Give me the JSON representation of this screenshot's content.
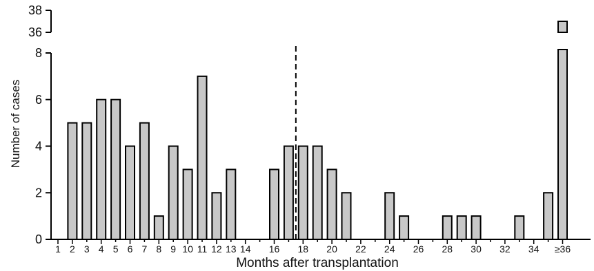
{
  "chart_data": {
    "type": "bar",
    "xlabel": "Months after transplantation",
    "ylabel": "Number of cases",
    "x_tick_labels": [
      "1",
      "2",
      "3",
      "4",
      "5",
      "6",
      "7",
      "8",
      "9",
      "10",
      "11",
      "12",
      "13",
      "14",
      "16",
      "18",
      "20",
      "22",
      "24",
      "26",
      "28",
      "30",
      "32",
      "34",
      "≥36"
    ],
    "y_tick_labels_lower": [
      "0",
      "2",
      "4",
      "6",
      "8"
    ],
    "y_tick_labels_upper": [
      "36",
      "38"
    ],
    "ylim_lower": [
      0,
      8
    ],
    "ylim_upper": [
      36,
      38
    ],
    "axis_break": true,
    "bars": [
      {
        "month": "2",
        "value": 5
      },
      {
        "month": "3",
        "value": 5
      },
      {
        "month": "4",
        "value": 6
      },
      {
        "month": "5",
        "value": 6
      },
      {
        "month": "6",
        "value": 4
      },
      {
        "month": "7",
        "value": 5
      },
      {
        "month": "8",
        "value": 1
      },
      {
        "month": "9",
        "value": 4
      },
      {
        "month": "10",
        "value": 3
      },
      {
        "month": "11",
        "value": 7
      },
      {
        "month": "12",
        "value": 2
      },
      {
        "month": "13",
        "value": 3
      },
      {
        "month": "16",
        "value": 3
      },
      {
        "month": "17",
        "value": 4
      },
      {
        "month": "18",
        "value": 4
      },
      {
        "month": "19",
        "value": 4
      },
      {
        "month": "20",
        "value": 3
      },
      {
        "month": "21",
        "value": 2
      },
      {
        "month": "24",
        "value": 2
      },
      {
        "month": "25",
        "value": 1
      },
      {
        "month": "28",
        "value": 1
      },
      {
        "month": "29",
        "value": 1
      },
      {
        "month": "30",
        "value": 1
      },
      {
        "month": "33",
        "value": 1
      },
      {
        "month": "35",
        "value": 2
      },
      {
        "month": "≥36",
        "value": 37
      }
    ],
    "reference_line_month": 17.5,
    "bar_color": "#c8c8c8",
    "bar_edge_color": "#000000",
    "grid": false
  }
}
